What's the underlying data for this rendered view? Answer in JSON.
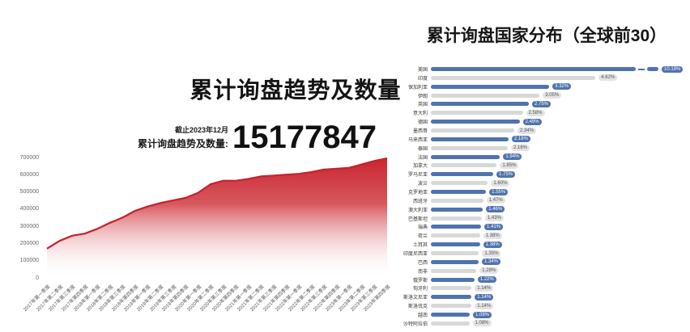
{
  "colors": {
    "area_line": "#c2232e",
    "area_fill_top": "#cb2430",
    "bar_blue": "#4e73b0",
    "bar_gray": "#d8d8d8",
    "badge_gray_bg": "#e3e3e3"
  },
  "left_chart": {
    "title": "累计询盘趋势及数量",
    "note": "截止2023年12月",
    "stat_label": "累计询盘趋势及数量:",
    "stat_value": "15177847"
  },
  "right_chart": {
    "title": "累计询盘国家分布（全球前30）"
  },
  "chart_data": [
    {
      "type": "area",
      "title": "累计询盘趋势及数量",
      "annotation": "截止2023年12月 累计询盘趋势及数量: 15177847",
      "x": [
        "2017年第一季度",
        "2017年第二季度",
        "2017年第三季度",
        "2017年第四季度",
        "2018年第一季度",
        "2018年第二季度",
        "2018年第三季度",
        "2018年第四季度",
        "2019年第一季度",
        "2019年第二季度",
        "2019年第三季度",
        "2019年第四季度",
        "2020年第一季度",
        "2020年第二季度",
        "2020年第三季度",
        "2020年第四季度",
        "2021年第一季度",
        "2021年第二季度",
        "2021年第三季度",
        "2021年第四季度",
        "2022年第一季度",
        "2022年第二季度",
        "2022年第三季度",
        "2022年第四季度",
        "2023年第一季度",
        "2023年第二季度",
        "2023年第三季度",
        "2023年第四季度"
      ],
      "values": [
        175000,
        220000,
        250000,
        262000,
        290000,
        325000,
        355000,
        395000,
        420000,
        440000,
        455000,
        470000,
        500000,
        550000,
        570000,
        570000,
        580000,
        595000,
        600000,
        605000,
        610000,
        620000,
        635000,
        640000,
        645000,
        665000,
        685000,
        700000
      ],
      "ylim": [
        0,
        700000
      ],
      "yticks": [
        0,
        100000,
        200000,
        300000,
        400000,
        500000,
        600000,
        700000
      ],
      "grid": false,
      "legend": "none"
    },
    {
      "type": "bar",
      "orientation": "horizontal",
      "title": "累计询盘国家分布（全球前30）",
      "categories": [
        "美国",
        "印度",
        "保加利亚",
        "伊朗",
        "英国",
        "意大利",
        "德国",
        "墨西哥",
        "马来西亚",
        "泰国",
        "法国",
        "加拿大",
        "罗马尼亚",
        "波兰",
        "克罗地亚",
        "西班牙",
        "澳大利亚",
        "巴基斯坦",
        "瑞典",
        "荷兰",
        "土耳其",
        "印度尼西亚",
        "巴西",
        "南非",
        "俄罗斯",
        "匈牙利",
        "斯洛文尼亚",
        "斯洛伐克",
        "越南",
        "沙特阿拉伯"
      ],
      "values": [
        10.19,
        4.62,
        3.32,
        3.05,
        2.75,
        2.58,
        2.49,
        2.34,
        2.18,
        2.16,
        1.94,
        1.85,
        1.75,
        1.6,
        1.55,
        1.47,
        1.46,
        1.43,
        1.41,
        1.38,
        1.38,
        1.35,
        1.34,
        1.28,
        1.22,
        1.14,
        1.14,
        1.14,
        1.09,
        1.08
      ],
      "labels": [
        "10.19%",
        "4.62%",
        "3.32%",
        "3.05%",
        "2.75%",
        "2.58%",
        "2.49%",
        "2.34%",
        "2.18%",
        "2.16%",
        "1.94%",
        "1.85%",
        "1.75%",
        "1.60%",
        "1.55%",
        "1.47%",
        "1.46%",
        "1.43%",
        "1.41%",
        "1.38%",
        "1.38%",
        "1.35%",
        "1.34%",
        "1.28%",
        "1.22%",
        "1.14%",
        "1.14%",
        "1.14%",
        "1.09%",
        "1.08%"
      ],
      "broken_axis_first_bar": true,
      "legend": "none"
    }
  ]
}
